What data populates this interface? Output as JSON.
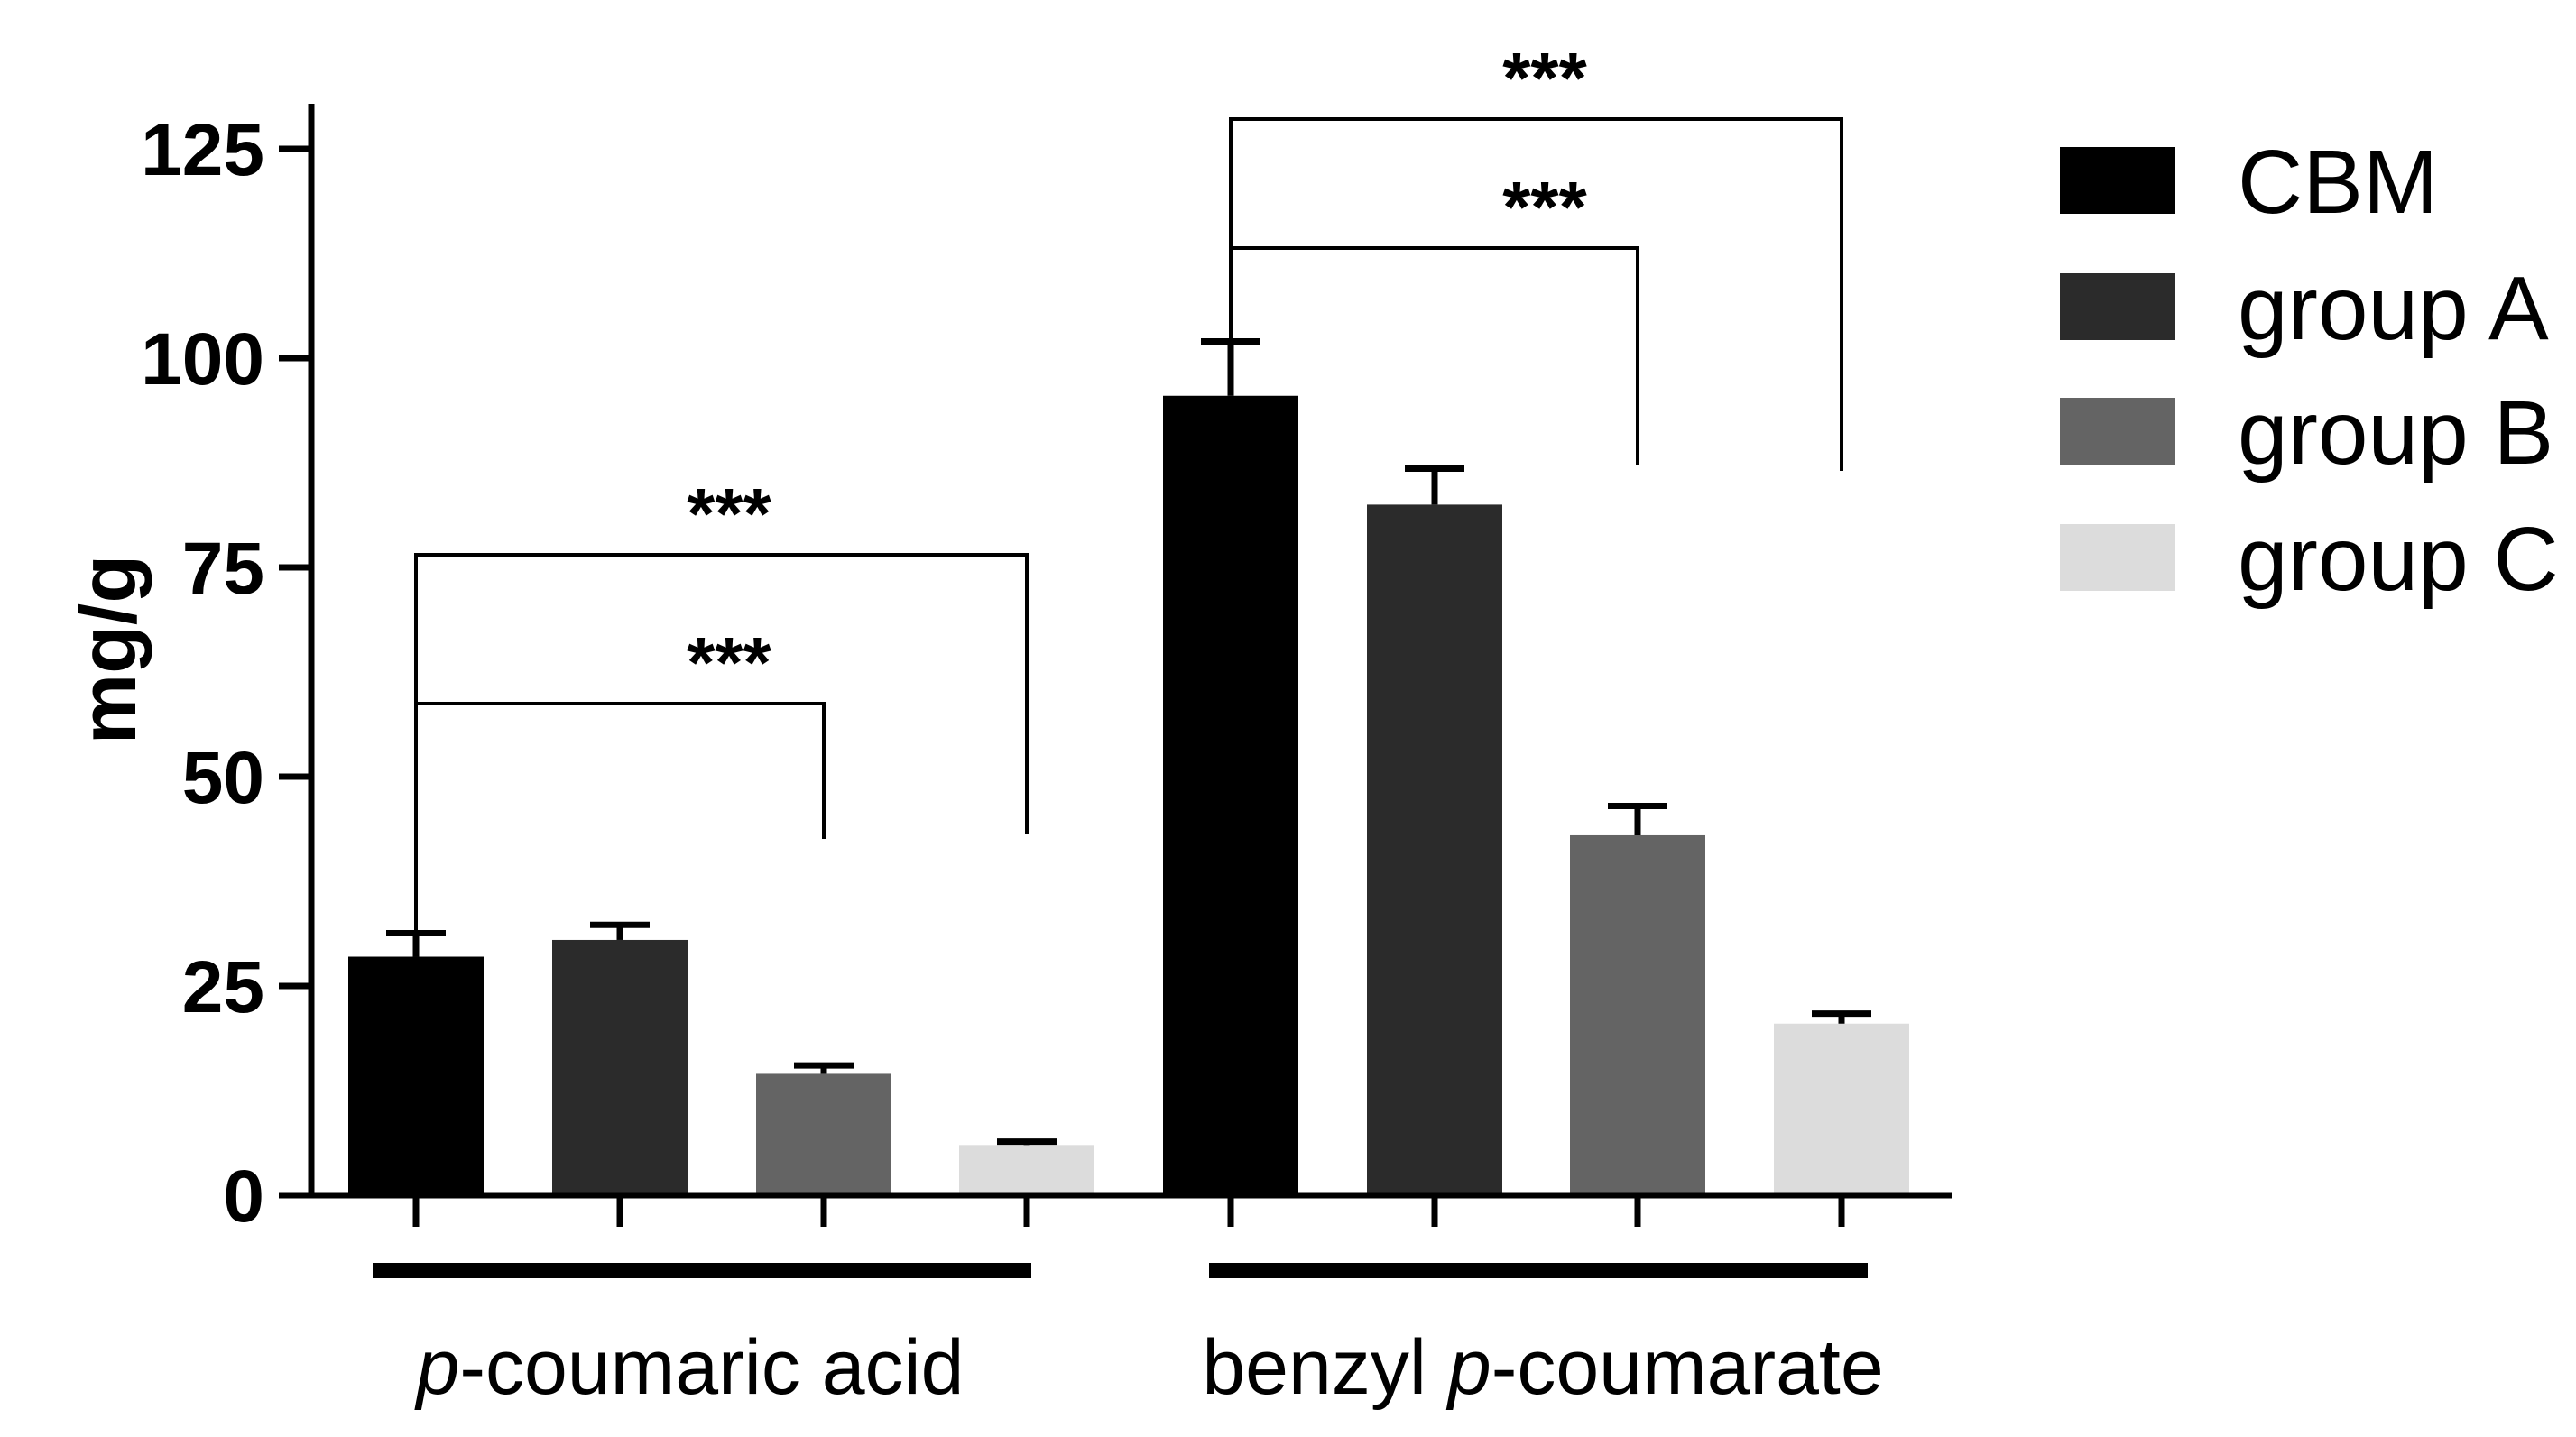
{
  "chart_data": {
    "type": "bar",
    "title": "",
    "xlabel": "",
    "ylabel": "mg/g",
    "ylim": [
      0,
      125
    ],
    "yticks": [
      0,
      25,
      50,
      75,
      100,
      125
    ],
    "grid": false,
    "legend_position": "top-right",
    "categories": [
      {
        "prefix": "p",
        "rest": "-coumaric acid"
      },
      {
        "prefix": "benzyl ",
        "italic": "p",
        "rest": "-coumarate"
      }
    ],
    "series": [
      {
        "name": "CBM",
        "color": "#000000",
        "values": [
          28.5,
          95.5
        ],
        "errors": [
          2.8,
          6.5
        ]
      },
      {
        "name": "group A",
        "color": "#2b2b2b",
        "values": [
          30.5,
          82.5
        ],
        "errors": [
          1.8,
          4.3
        ]
      },
      {
        "name": "group B",
        "color": "#646464",
        "values": [
          14.5,
          43.0
        ],
        "errors": [
          1.0,
          3.5
        ]
      },
      {
        "name": "group C",
        "color": "#dcdcdc",
        "values": [
          6.0,
          20.5
        ],
        "errors": [
          0.4,
          1.2
        ]
      }
    ],
    "significance": [
      {
        "category": 0,
        "from": 0,
        "to": 2,
        "label": "***"
      },
      {
        "category": 0,
        "from": 0,
        "to": 3,
        "label": "***"
      },
      {
        "category": 1,
        "from": 0,
        "to": 2,
        "label": "***"
      },
      {
        "category": 1,
        "from": 0,
        "to": 3,
        "label": "***"
      }
    ]
  }
}
